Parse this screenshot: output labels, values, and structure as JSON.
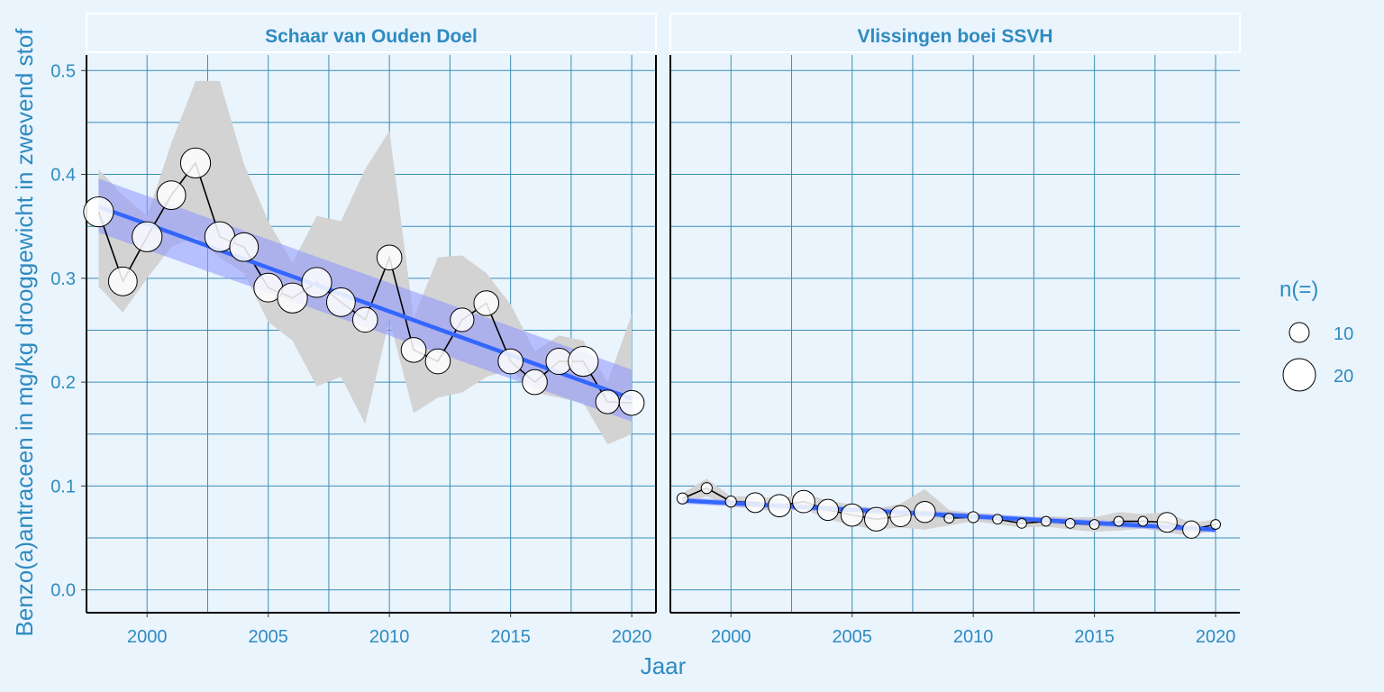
{
  "chart_data": {
    "type": "line",
    "xlabel": "Jaar",
    "ylabel": "Benzo(a)antraceen in mg/kg drooggewicht in zwevend stof",
    "xlim": [
      1997.5,
      2021.0
    ],
    "ylim": [
      -0.022,
      0.515
    ],
    "x_ticks": [
      2000,
      2005,
      2010,
      2015,
      2020
    ],
    "y_ticks": [
      0.0,
      0.1,
      0.2,
      0.3,
      0.4,
      0.5
    ],
    "y_tick_labels": [
      "0.0",
      "0.1",
      "0.2",
      "0.3",
      "0.4",
      "0.5"
    ],
    "grid": true,
    "colors": {
      "background": "#eaf4fd",
      "grid": "#3a8fb7",
      "ribbon": "#d3d3d3",
      "trend": "#3366ff",
      "trend_band": "#8c96ff",
      "text": "#2e8bc0"
    },
    "legend": {
      "title": "n(=)",
      "placement": "right",
      "entries": [
        {
          "label": "10",
          "n": 10
        },
        {
          "label": "20",
          "n": 20
        }
      ]
    },
    "panels": [
      {
        "title": "Schaar van Ouden Doel",
        "series": [
          {
            "x": [
              1998,
              1999,
              2000,
              2001,
              2002,
              2003,
              2004,
              2005,
              2006,
              2007,
              2008,
              2009,
              2010,
              2011,
              2012,
              2013,
              2014,
              2015,
              2016,
              2017,
              2018,
              2019,
              2020
            ],
            "y": [
              0.364,
              0.297,
              0.34,
              0.38,
              0.411,
              0.34,
              0.33,
              0.291,
              0.281,
              0.296,
              0.277,
              0.26,
              0.32,
              0.231,
              0.22,
              0.26,
              0.276,
              0.22,
              0.2,
              0.22,
              0.22,
              0.181,
              0.18
            ],
            "n": [
              18,
              17,
              18,
              17,
              18,
              18,
              17,
              17,
              18,
              18,
              17,
              14,
              14,
              14,
              14,
              13,
              14,
              14,
              14,
              15,
              18,
              13,
              14
            ],
            "ribbon_low": [
              0.292,
              0.267,
              0.3,
              0.33,
              0.34,
              0.32,
              0.305,
              0.258,
              0.24,
              0.196,
              0.205,
              0.16,
              0.26,
              0.17,
              0.185,
              0.19,
              0.205,
              0.212,
              0.19,
              0.185,
              0.18,
              0.14,
              0.15
            ],
            "ribbon_high": [
              0.405,
              0.38,
              0.36,
              0.43,
              0.49,
              0.49,
              0.41,
              0.355,
              0.315,
              0.36,
              0.355,
              0.405,
              0.442,
              0.262,
              0.32,
              0.322,
              0.305,
              0.275,
              0.23,
              0.245,
              0.24,
              0.2,
              0.265
            ]
          }
        ],
        "trend": {
          "start": [
            1998,
            0.369
          ],
          "end": [
            2020,
            0.184
          ],
          "band_start": [
            0.344,
            0.396
          ],
          "band_end": [
            0.162,
            0.212
          ]
        }
      },
      {
        "title": "Vlissingen boei SSVH",
        "series": [
          {
            "x": [
              1998,
              1999,
              2000,
              2001,
              2002,
              2003,
              2004,
              2005,
              2006,
              2007,
              2008,
              2009,
              2010,
              2011,
              2012,
              2013,
              2014,
              2015,
              2016,
              2017,
              2018,
              2019,
              2020
            ],
            "y": [
              0.088,
              0.098,
              0.085,
              0.084,
              0.081,
              0.085,
              0.077,
              0.072,
              0.068,
              0.071,
              0.075,
              0.069,
              0.07,
              0.068,
              0.064,
              0.066,
              0.064,
              0.063,
              0.066,
              0.066,
              0.065,
              0.058,
              0.063
            ],
            "n": [
              3,
              3,
              3,
              10,
              12,
              12,
              11,
              12,
              13,
              11,
              11,
              2,
              3,
              2,
              2,
              2,
              2,
              2,
              2,
              2,
              10,
              8,
              2
            ],
            "ribbon_low": [
              0.083,
              0.09,
              0.08,
              0.078,
              0.075,
              0.078,
              0.068,
              0.062,
              0.058,
              0.06,
              0.058,
              0.062,
              0.066,
              0.063,
              0.06,
              0.061,
              0.058,
              0.056,
              0.057,
              0.059,
              0.055,
              0.052,
              0.058
            ],
            "ribbon_high": [
              0.093,
              0.107,
              0.09,
              0.09,
              0.088,
              0.093,
              0.086,
              0.082,
              0.078,
              0.083,
              0.097,
              0.077,
              0.074,
              0.073,
              0.068,
              0.071,
              0.07,
              0.07,
              0.075,
              0.073,
              0.075,
              0.064,
              0.068
            ]
          }
        ],
        "trend": {
          "start": [
            1998,
            0.086
          ],
          "end": [
            2020,
            0.058
          ],
          "band_start": [
            0.083,
            0.089
          ],
          "band_end": [
            0.055,
            0.061
          ]
        }
      }
    ]
  }
}
